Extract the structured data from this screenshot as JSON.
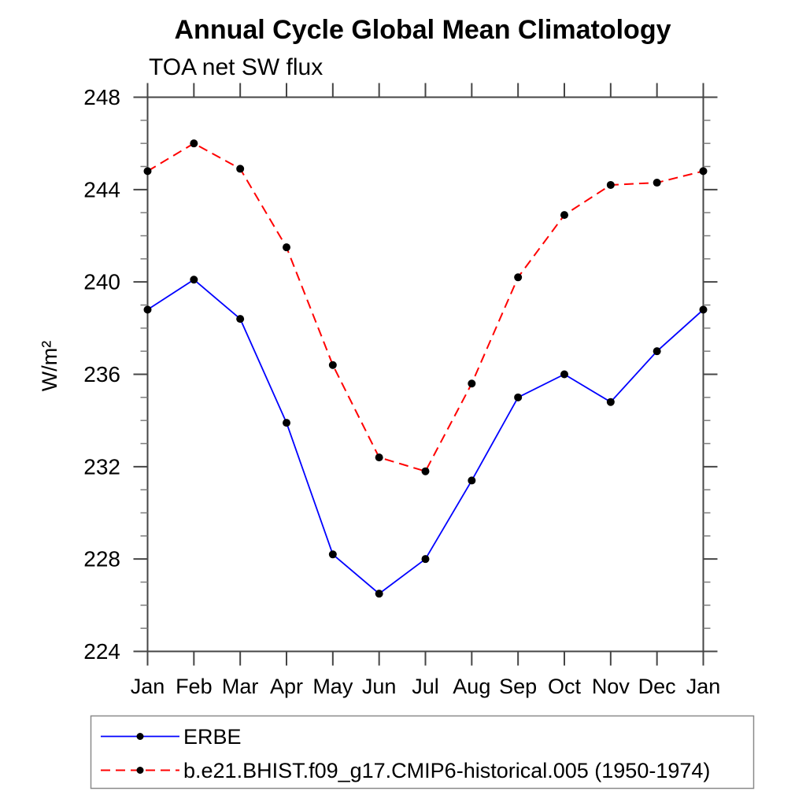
{
  "page": {
    "background": "#ffffff"
  },
  "chart_data": {
    "type": "line",
    "title": "Annual Cycle Global Mean Climatology",
    "subtitle": "TOA net SW flux",
    "ylabel": "W/m²",
    "xlabel": "",
    "categories": [
      "Jan",
      "Feb",
      "Mar",
      "Apr",
      "May",
      "Jun",
      "Jul",
      "Aug",
      "Sep",
      "Oct",
      "Nov",
      "Dec",
      "Jan"
    ],
    "series": [
      {
        "name": "ERBE",
        "color": "#0000ff",
        "line_style": "solid",
        "marker": "filled-circle",
        "marker_color": "#000000",
        "values": [
          238.8,
          240.1,
          238.4,
          233.9,
          228.2,
          226.5,
          228.0,
          231.4,
          235.0,
          236.0,
          234.8,
          237.0,
          238.8
        ]
      },
      {
        "name": "b.e21.BHIST.f09_g17.CMIP6-historical.005 (1950-1974)",
        "color": "#ff0000",
        "line_style": "dashed",
        "marker": "filled-circle",
        "marker_color": "#000000",
        "values": [
          244.8,
          246.0,
          244.9,
          241.5,
          236.4,
          232.4,
          231.8,
          235.6,
          240.2,
          242.9,
          244.2,
          244.3,
          244.8
        ]
      }
    ],
    "ylim": [
      224,
      248
    ],
    "y_major_ticks": [
      224,
      228,
      232,
      236,
      240,
      244,
      248
    ],
    "y_minor_step": 1,
    "grid": false,
    "tick_direction": "out",
    "frame": "box",
    "legend_position": "bottom-left"
  }
}
